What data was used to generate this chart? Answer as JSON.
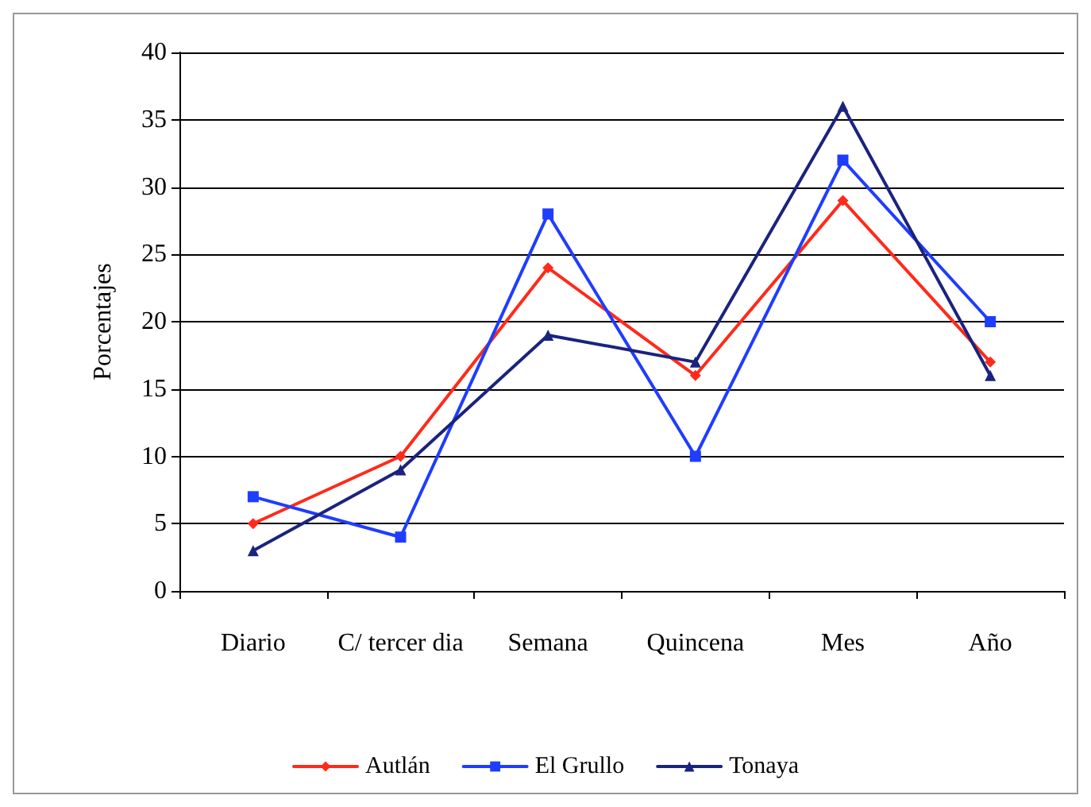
{
  "chart_data": {
    "type": "line",
    "ylabel": "Porcentajes",
    "categories": [
      "Diario",
      "C/ tercer dia",
      "Semana",
      "Quincena",
      "Mes",
      "Año"
    ],
    "series": [
      {
        "name": "Autlán",
        "color": "#ff2a1a",
        "marker": "diamond",
        "values": [
          5,
          10,
          24,
          16,
          29,
          17
        ]
      },
      {
        "name": "El Grullo",
        "color": "#1f3dff",
        "marker": "square",
        "values": [
          7,
          4,
          28,
          10,
          32,
          20
        ]
      },
      {
        "name": "Tonaya",
        "color": "#1a237e",
        "marker": "triangle",
        "values": [
          3,
          9,
          19,
          17,
          36,
          16
        ]
      }
    ],
    "ylim": [
      0,
      40
    ],
    "yticks": [
      0,
      5,
      10,
      15,
      20,
      25,
      30,
      35,
      40
    ],
    "grid": "y",
    "legend": "bottom",
    "line_style": "solid"
  }
}
